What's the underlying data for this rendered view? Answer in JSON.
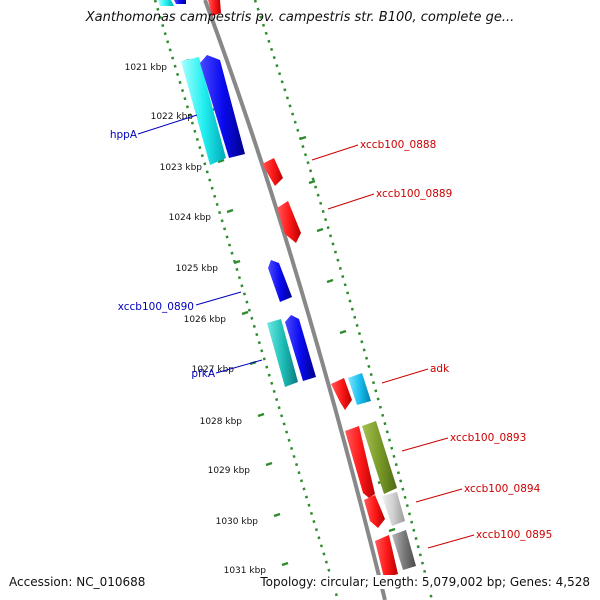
{
  "title": "Xanthomonas campestris pv. campestris str. B100, complete ge...",
  "footer": {
    "accession": "Accession: NC_010688",
    "summary": "Topology: circular; Length: 5,079,002 bp; Genes: 4,528"
  },
  "scale": {
    "labels": [
      "1021 kbp",
      "1022 kbp",
      "1023 kbp",
      "1024 kbp",
      "1025 kbp",
      "1026 kbp",
      "1027 kbp",
      "1028 kbp",
      "1029 kbp",
      "1030 kbp",
      "1031 kbp"
    ]
  },
  "gene_labels": {
    "hppA": "hppA",
    "xccb100_0890": "xccb100_0890",
    "pfkA": "pfkA",
    "xccb100_0888": "xccb100_0888",
    "xccb100_0889": "xccb100_0889",
    "adk": "adk",
    "xccb100_0893": "xccb100_0893",
    "xccb100_0894": "xccb100_0894",
    "xccb100_0895": "xccb100_0895"
  },
  "colors": {
    "forward_label": "#0000bb",
    "reverse_label": "#cc0000",
    "tick": "#2e8b2e",
    "backbone": "#888888"
  }
}
